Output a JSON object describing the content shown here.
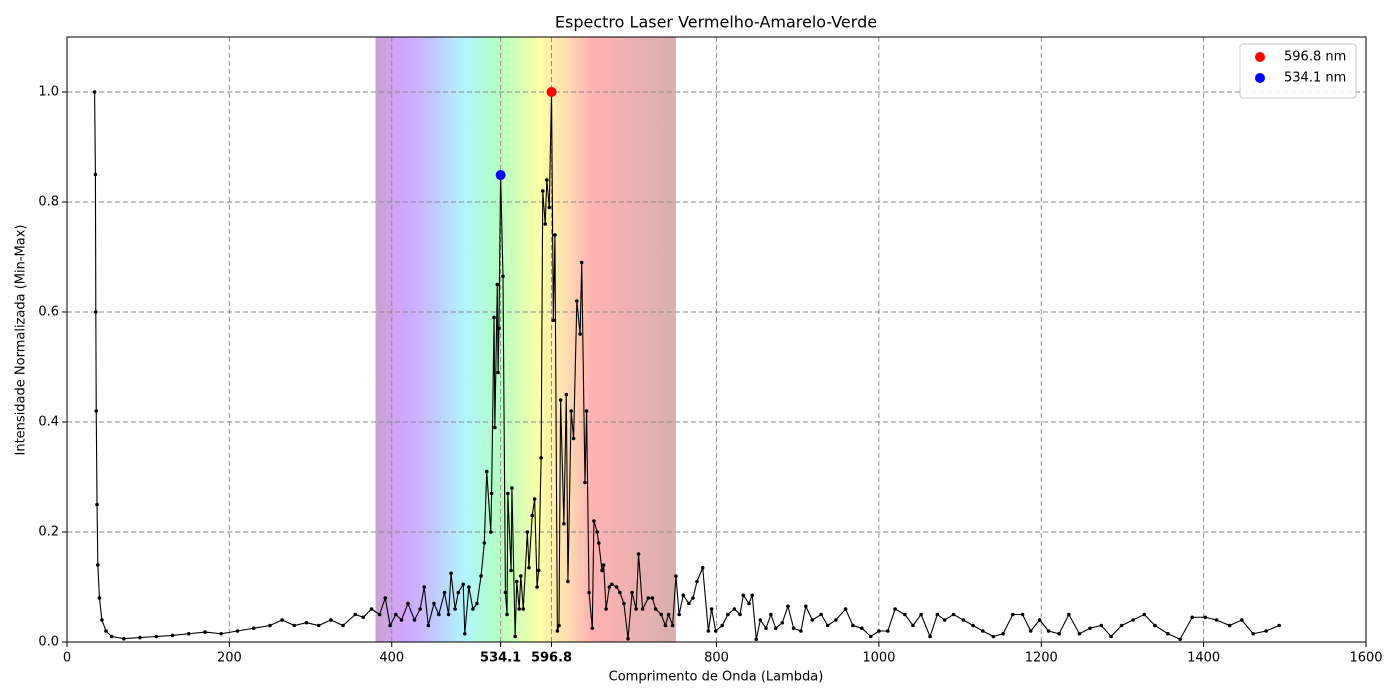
{
  "chart_data": {
    "type": "line",
    "title": "Espectro Laser Vermelho-Amarelo-Verde",
    "x_label": "Comprimento de Onda (Lambda)",
    "y_label": "Intensidade Normalizada (Min-Max)",
    "xlim": [
      0,
      1600
    ],
    "ylim": [
      0,
      1.1
    ],
    "xticks": [
      0,
      200,
      400,
      534.1,
      596.8,
      800,
      1000,
      1200,
      1400,
      1600
    ],
    "yticks": [
      {
        "value": 0,
        "label": "0.0"
      },
      0.2,
      0.4,
      0.6,
      0.8,
      {
        "value": 1,
        "label": "1.0"
      }
    ],
    "grid": true,
    "legend": "upper right",
    "visible_band": [
      380,
      750
    ],
    "series": [
      {
        "type": "line",
        "color": "#000000",
        "x": [
          34,
          35,
          35.5,
          36,
          37,
          38,
          40,
          43,
          48,
          55,
          70,
          90,
          110,
          130,
          150,
          170,
          190,
          210,
          230,
          250,
          265,
          280,
          295,
          310,
          325,
          340,
          355,
          365,
          375,
          385,
          392,
          398,
          405,
          412,
          420,
          428,
          435,
          440,
          445,
          452,
          458,
          465,
          470,
          473,
          478,
          482,
          488,
          490,
          495,
          500,
          505,
          510,
          514,
          517,
          522,
          523,
          526,
          527,
          530,
          531,
          532,
          534.1,
          537,
          540,
          542,
          543,
          547,
          548,
          552,
          554,
          557,
          559,
          562,
          567,
          569,
          573,
          576,
          579,
          581,
          584,
          586,
          589,
          591,
          594,
          596.8,
          599,
          601,
          604,
          606,
          608,
          612,
          615,
          617,
          621,
          624,
          628,
          632,
          634,
          638,
          640,
          643,
          647,
          649,
          653,
          655,
          659,
          661,
          664,
          668,
          671,
          677,
          681,
          686,
          691,
          696,
          701,
          704,
          709,
          716,
          721,
          725,
          732,
          737,
          741,
          746,
          750,
          754,
          759,
          766,
          771,
          776,
          783,
          790,
          794,
          799,
          807,
          814,
          822,
          829,
          833,
          840,
          844,
          849,
          854,
          861,
          867,
          873,
          881,
          888,
          895,
          904,
          910,
          918,
          929,
          937,
          947,
          959,
          968,
          979,
          990,
          1000,
          1011,
          1020,
          1032,
          1042,
          1052,
          1063,
          1072,
          1081,
          1092,
          1104,
          1116,
          1128,
          1141,
          1153,
          1165,
          1177,
          1187,
          1198,
          1209,
          1222,
          1234,
          1247,
          1260,
          1274,
          1286,
          1299,
          1313,
          1327,
          1340,
          1356,
          1371,
          1386,
          1402,
          1416,
          1432,
          1447,
          1461,
          1477,
          1493
        ],
        "values": [
          1.0,
          0.85,
          0.6,
          0.42,
          0.25,
          0.14,
          0.08,
          0.04,
          0.02,
          0.01,
          0.006,
          0.008,
          0.01,
          0.012,
          0.015,
          0.018,
          0.015,
          0.02,
          0.025,
          0.03,
          0.04,
          0.03,
          0.035,
          0.03,
          0.04,
          0.03,
          0.05,
          0.045,
          0.06,
          0.05,
          0.08,
          0.03,
          0.05,
          0.04,
          0.07,
          0.04,
          0.06,
          0.1,
          0.03,
          0.07,
          0.05,
          0.09,
          0.05,
          0.125,
          0.06,
          0.09,
          0.105,
          0.015,
          0.1,
          0.06,
          0.07,
          0.12,
          0.18,
          0.31,
          0.2,
          0.27,
          0.59,
          0.39,
          0.65,
          0.49,
          0.57,
          0.849,
          0.665,
          0.09,
          0.05,
          0.27,
          0.13,
          0.28,
          0.01,
          0.11,
          0.06,
          0.12,
          0.06,
          0.2,
          0.135,
          0.23,
          0.26,
          0.1,
          0.13,
          0.335,
          0.82,
          0.76,
          0.84,
          0.79,
          1.0,
          0.585,
          0.74,
          0.02,
          0.03,
          0.44,
          0.215,
          0.45,
          0.11,
          0.42,
          0.37,
          0.62,
          0.56,
          0.69,
          0.29,
          0.42,
          0.09,
          0.025,
          0.22,
          0.2,
          0.18,
          0.13,
          0.14,
          0.06,
          0.1,
          0.105,
          0.1,
          0.09,
          0.07,
          0.006,
          0.09,
          0.06,
          0.16,
          0.06,
          0.08,
          0.08,
          0.06,
          0.05,
          0.03,
          0.05,
          0.03,
          0.12,
          0.05,
          0.085,
          0.07,
          0.08,
          0.11,
          0.135,
          0.02,
          0.06,
          0.02,
          0.03,
          0.05,
          0.06,
          0.05,
          0.085,
          0.07,
          0.085,
          0.005,
          0.04,
          0.025,
          0.05,
          0.025,
          0.035,
          0.065,
          0.025,
          0.02,
          0.065,
          0.04,
          0.05,
          0.03,
          0.04,
          0.06,
          0.03,
          0.025,
          0.01,
          0.02,
          0.02,
          0.06,
          0.05,
          0.03,
          0.05,
          0.01,
          0.05,
          0.04,
          0.05,
          0.04,
          0.03,
          0.02,
          0.01,
          0.015,
          0.05,
          0.05,
          0.02,
          0.04,
          0.02,
          0.015,
          0.05,
          0.015,
          0.025,
          0.03,
          0.01,
          0.03,
          0.04,
          0.05,
          0.03,
          0.015,
          0.005,
          0.045,
          0.045,
          0.04,
          0.03,
          0.04,
          0.015,
          0.02,
          0.03
        ]
      },
      {
        "type": "scatter",
        "name": "596.8 nm",
        "color": "#ff0000",
        "x": [
          596.8
        ],
        "values": [
          1.0
        ]
      },
      {
        "type": "scatter",
        "name": "534.1 nm",
        "color": "#0000ff",
        "x": [
          534.1
        ],
        "values": [
          0.849
        ]
      }
    ]
  }
}
